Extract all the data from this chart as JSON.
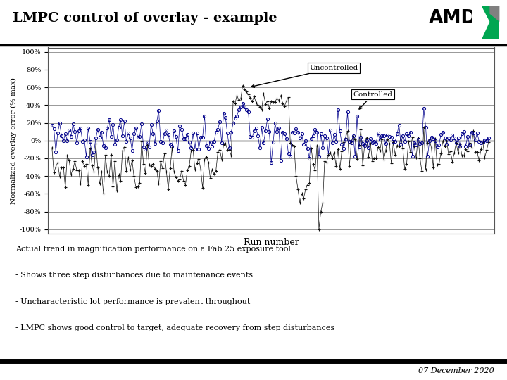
{
  "title": "LMPC control of overlay - example",
  "xlabel": "Run number",
  "ylabel": "Normalized overlay error (% max)",
  "yticks": [
    -1.0,
    -0.8,
    -0.6,
    -0.4,
    -0.2,
    0.0,
    0.2,
    0.4,
    0.6,
    0.8,
    1.0
  ],
  "ytick_labels": [
    "-100%",
    "-80%",
    "-60%",
    "-40%",
    "-20%",
    "0%",
    "20%",
    "40%",
    "60%",
    "80%",
    "100%"
  ],
  "ylim": [
    -1.05,
    1.05
  ],
  "background_color": "#ffffff",
  "uncontrolled_color": "#000000",
  "controlled_color": "#00008B",
  "footer_text": "07 December 2020",
  "annotation_lines": [
    "Actual trend in magnification performance on a Fab 25 exposure tool",
    "- Shows three step disturbances due to maintenance events",
    "- Uncharacteristic lot performance is prevalent throughout",
    "- LMPC shows good control to target, adequate recovery from step disturbances"
  ],
  "n_runs": 230,
  "seed": 7
}
